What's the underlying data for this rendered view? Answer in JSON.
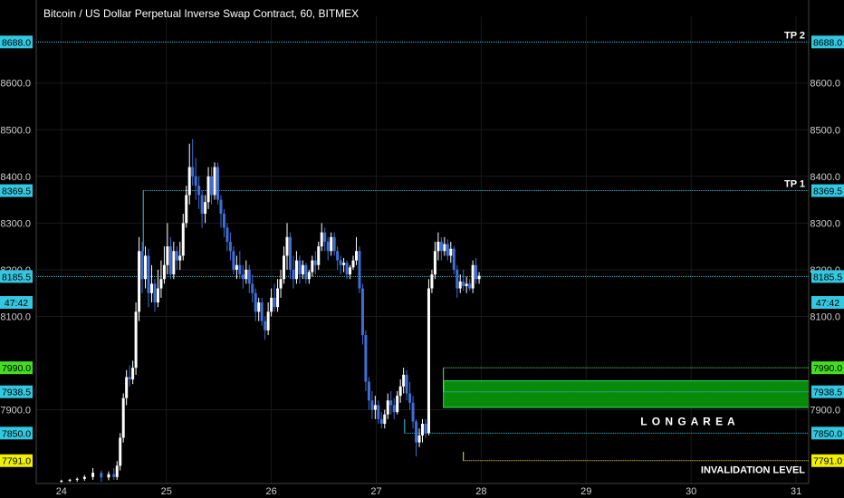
{
  "header": {
    "title": "Bitcoin / US Dollar Perpetual Inverse Swap Contract, 60, BITMEX"
  },
  "colors": {
    "background": "#000000",
    "up_candle": "#ffffff",
    "down_candle": "#3f6ed6",
    "level_line": "#33c7e0",
    "long_area_fill": "#0a8a0a",
    "long_area_border": "#29e05a",
    "long_area_top_line": "#7be36a",
    "invalidation_line": "#e6e65a",
    "axis_text": "#cfcfcf",
    "grid": "#1a1a1a"
  },
  "chart_data": {
    "type": "candlestick",
    "x_ticks": [
      "24",
      "25",
      "26",
      "27",
      "28",
      "29",
      "30",
      "31"
    ],
    "y_ticks": [
      "8600.0",
      "8500.0",
      "8400.0",
      "8300.0",
      "8200.0",
      "8100.0",
      "7900.0"
    ],
    "ylim": [
      7742,
      8743
    ],
    "xlim": [
      23.76,
      31.12
    ],
    "grid": true,
    "price_labels": [
      {
        "value": "8688.0",
        "price": 8688,
        "bg": "#33c7e0",
        "fg": "#000000"
      },
      {
        "value": "8369.5",
        "price": 8369.5,
        "bg": "#33c7e0",
        "fg": "#000000"
      },
      {
        "value": "8185.5",
        "price": 8185.5,
        "bg": "#33c7e0",
        "fg": "#000000"
      },
      {
        "value": "47:42",
        "price": 8130,
        "bg": "#33c7e0",
        "fg": "#000000"
      },
      {
        "value": "7990.0",
        "price": 7990,
        "bg": "#44dd22",
        "fg": "#000000"
      },
      {
        "value": "7938.5",
        "price": 7938.5,
        "bg": "#33c7e0",
        "fg": "#000000"
      },
      {
        "value": "7850.0",
        "price": 7850,
        "bg": "#33c7e0",
        "fg": "#000000"
      },
      {
        "value": "7791.0",
        "price": 7791,
        "bg": "#f0f000",
        "fg": "#000000"
      }
    ],
    "annotations": [
      {
        "text": "TP 2",
        "price": 8688
      },
      {
        "text": "TP 1",
        "price": 8369.5
      },
      {
        "text": "L O N G   A R E A",
        "price": 7875
      },
      {
        "text": "INVALIDATION LEVEL",
        "price": 7772
      }
    ],
    "levels": [
      {
        "name": "tp2",
        "price": 8688,
        "from": 23.76,
        "style": "dotted"
      },
      {
        "name": "tp1",
        "price": 8369.5,
        "from": 24.78,
        "style": "dotted"
      },
      {
        "name": "current",
        "price": 8185.5,
        "from": 23.76,
        "style": "dotted"
      },
      {
        "name": "entry-high",
        "price": 7990,
        "from": 27.64,
        "style": "dotted"
      },
      {
        "name": "entry-mid",
        "price": 7938.5,
        "from": 27.64,
        "style": "dotted"
      },
      {
        "name": "support",
        "price": 7850,
        "from": 27.27,
        "style": "dotted"
      },
      {
        "name": "invalidation",
        "price": 7791,
        "from": 27.83,
        "style": "dotted"
      }
    ],
    "long_area": {
      "x_from": 27.64,
      "price_top": 7962,
      "price_bottom": 7905
    },
    "candles": [
      [
        24.0,
        7746,
        7750,
        7744,
        7748
      ],
      [
        24.08,
        7748,
        7752,
        7745,
        7750
      ],
      [
        24.15,
        7750,
        7755,
        7746,
        7752
      ],
      [
        24.22,
        7752,
        7760,
        7748,
        7756
      ],
      [
        24.3,
        7756,
        7775,
        7750,
        7765
      ],
      [
        24.38,
        7765,
        7770,
        7745,
        7755
      ],
      [
        24.45,
        7755,
        7768,
        7749,
        7762
      ],
      [
        24.5,
        7762,
        7775,
        7750,
        7756
      ],
      [
        24.53,
        7756,
        7790,
        7750,
        7780
      ],
      [
        24.56,
        7780,
        7850,
        7770,
        7840
      ],
      [
        24.59,
        7840,
        7935,
        7830,
        7925
      ],
      [
        24.62,
        7925,
        7985,
        7910,
        7970
      ],
      [
        24.65,
        7970,
        7995,
        7950,
        7965
      ],
      [
        24.68,
        7965,
        8005,
        7955,
        7990
      ],
      [
        24.71,
        7990,
        8130,
        7975,
        8110
      ],
      [
        24.74,
        8110,
        8270,
        8090,
        8240
      ],
      [
        24.77,
        8240,
        8260,
        8150,
        8180
      ],
      [
        24.8,
        8180,
        8250,
        8160,
        8230
      ],
      [
        24.83,
        8230,
        8245,
        8120,
        8150
      ],
      [
        24.86,
        8150,
        8210,
        8130,
        8170
      ],
      [
        24.89,
        8170,
        8180,
        8110,
        8130
      ],
      [
        24.92,
        8130,
        8200,
        8120,
        8160
      ],
      [
        24.95,
        8160,
        8220,
        8140,
        8180
      ],
      [
        24.98,
        8180,
        8250,
        8170,
        8210
      ],
      [
        25.01,
        8210,
        8300,
        8190,
        8250
      ],
      [
        25.04,
        8250,
        8270,
        8180,
        8190
      ],
      [
        25.07,
        8190,
        8260,
        8180,
        8240
      ],
      [
        25.1,
        8240,
        8250,
        8200,
        8220
      ],
      [
        25.13,
        8220,
        8260,
        8200,
        8230
      ],
      [
        25.16,
        8230,
        8320,
        8220,
        8300
      ],
      [
        25.19,
        8300,
        8380,
        8290,
        8360
      ],
      [
        25.22,
        8360,
        8470,
        8340,
        8420
      ],
      [
        25.25,
        8420,
        8480,
        8380,
        8400
      ],
      [
        25.28,
        8400,
        8440,
        8350,
        8380
      ],
      [
        25.31,
        8380,
        8400,
        8330,
        8360
      ],
      [
        25.34,
        8360,
        8370,
        8290,
        8320
      ],
      [
        25.37,
        8320,
        8360,
        8300,
        8345
      ],
      [
        25.4,
        8345,
        8420,
        8330,
        8400
      ],
      [
        25.43,
        8400,
        8420,
        8340,
        8360
      ],
      [
        25.46,
        8360,
        8430,
        8350,
        8420
      ],
      [
        25.49,
        8420,
        8430,
        8340,
        8350
      ],
      [
        25.52,
        8350,
        8360,
        8290,
        8320
      ],
      [
        25.55,
        8320,
        8330,
        8270,
        8290
      ],
      [
        25.58,
        8290,
        8300,
        8240,
        8260
      ],
      [
        25.61,
        8260,
        8280,
        8220,
        8240
      ],
      [
        25.64,
        8240,
        8250,
        8190,
        8200
      ],
      [
        25.67,
        8200,
        8230,
        8180,
        8210
      ],
      [
        25.7,
        8210,
        8240,
        8180,
        8190
      ],
      [
        25.73,
        8190,
        8210,
        8160,
        8180
      ],
      [
        25.76,
        8180,
        8220,
        8170,
        8200
      ],
      [
        25.79,
        8200,
        8210,
        8150,
        8170
      ],
      [
        25.82,
        8170,
        8190,
        8130,
        8150
      ],
      [
        25.85,
        8150,
        8160,
        8090,
        8110
      ],
      [
        25.88,
        8110,
        8140,
        8090,
        8130
      ],
      [
        25.91,
        8130,
        8140,
        8080,
        8090
      ],
      [
        25.94,
        8090,
        8100,
        8050,
        8070
      ],
      [
        25.97,
        8070,
        8130,
        8060,
        8110
      ],
      [
        26.0,
        8110,
        8160,
        8100,
        8140
      ],
      [
        26.03,
        8140,
        8170,
        8110,
        8120
      ],
      [
        26.06,
        8120,
        8180,
        8110,
        8160
      ],
      [
        26.09,
        8160,
        8200,
        8140,
        8180
      ],
      [
        26.12,
        8180,
        8250,
        8170,
        8230
      ],
      [
        26.15,
        8230,
        8300,
        8200,
        8270
      ],
      [
        26.18,
        8270,
        8280,
        8180,
        8200
      ],
      [
        26.21,
        8200,
        8230,
        8160,
        8180
      ],
      [
        26.24,
        8180,
        8240,
        8170,
        8220
      ],
      [
        26.27,
        8220,
        8230,
        8170,
        8190
      ],
      [
        26.3,
        8190,
        8220,
        8180,
        8210
      ],
      [
        26.33,
        8210,
        8215,
        8170,
        8180
      ],
      [
        26.36,
        8180,
        8200,
        8170,
        8195
      ],
      [
        26.39,
        8195,
        8230,
        8185,
        8220
      ],
      [
        26.42,
        8220,
        8240,
        8190,
        8210
      ],
      [
        26.45,
        8210,
        8260,
        8200,
        8250
      ],
      [
        26.48,
        8250,
        8300,
        8240,
        8280
      ],
      [
        26.51,
        8280,
        8290,
        8240,
        8260
      ],
      [
        26.54,
        8260,
        8270,
        8220,
        8240
      ],
      [
        26.57,
        8240,
        8280,
        8230,
        8270
      ],
      [
        26.6,
        8270,
        8280,
        8230,
        8240
      ],
      [
        26.63,
        8240,
        8250,
        8200,
        8220
      ],
      [
        26.66,
        8220,
        8230,
        8190,
        8210
      ],
      [
        26.69,
        8210,
        8225,
        8195,
        8215
      ],
      [
        26.72,
        8215,
        8220,
        8180,
        8190
      ],
      [
        26.75,
        8190,
        8210,
        8180,
        8205
      ],
      [
        26.78,
        8205,
        8230,
        8200,
        8220
      ],
      [
        26.81,
        8220,
        8270,
        8210,
        8240
      ],
      [
        26.84,
        8240,
        8250,
        8150,
        8160
      ],
      [
        26.87,
        8160,
        8170,
        8040,
        8060
      ],
      [
        26.9,
        8060,
        8070,
        7940,
        7960
      ],
      [
        26.93,
        7960,
        7970,
        7900,
        7920
      ],
      [
        26.96,
        7920,
        7940,
        7880,
        7900
      ],
      [
        26.99,
        7900,
        7930,
        7880,
        7910
      ],
      [
        27.02,
        7910,
        7920,
        7870,
        7880
      ],
      [
        27.05,
        7880,
        7895,
        7860,
        7870
      ],
      [
        27.08,
        7870,
        7900,
        7860,
        7890
      ],
      [
        27.11,
        7890,
        7935,
        7880,
        7920
      ],
      [
        27.14,
        7920,
        7940,
        7890,
        7910
      ],
      [
        27.17,
        7910,
        7925,
        7880,
        7895
      ],
      [
        27.2,
        7895,
        7940,
        7890,
        7930
      ],
      [
        27.23,
        7930,
        7965,
        7915,
        7950
      ],
      [
        27.26,
        7950,
        7990,
        7935,
        7975
      ],
      [
        27.29,
        7975,
        7985,
        7920,
        7935
      ],
      [
        27.32,
        7935,
        7960,
        7900,
        7915
      ],
      [
        27.35,
        7915,
        7930,
        7860,
        7875
      ],
      [
        27.38,
        7875,
        7880,
        7800,
        7830
      ],
      [
        27.41,
        7830,
        7860,
        7820,
        7845
      ],
      [
        27.44,
        7845,
        7880,
        7830,
        7870
      ],
      [
        27.47,
        7870,
        7880,
        7840,
        7850
      ],
      [
        27.5,
        7850,
        8180,
        7845,
        8160
      ],
      [
        27.53,
        8160,
        8200,
        8150,
        8190
      ],
      [
        27.56,
        8190,
        8260,
        8180,
        8240
      ],
      [
        27.59,
        8240,
        8280,
        8220,
        8260
      ],
      [
        27.62,
        8260,
        8270,
        8220,
        8240
      ],
      [
        27.65,
        8240,
        8270,
        8230,
        8255
      ],
      [
        27.68,
        8255,
        8265,
        8220,
        8230
      ],
      [
        27.71,
        8230,
        8260,
        8215,
        8245
      ],
      [
        27.74,
        8245,
        8250,
        8190,
        8200
      ],
      [
        27.77,
        8200,
        8210,
        8140,
        8160
      ],
      [
        27.8,
        8160,
        8190,
        8150,
        8175
      ],
      [
        27.83,
        8175,
        8200,
        8155,
        8165
      ],
      [
        27.86,
        8165,
        8185,
        8150,
        8170
      ],
      [
        27.89,
        8170,
        8180,
        8155,
        8160
      ],
      [
        27.92,
        8160,
        8220,
        8150,
        8210
      ],
      [
        27.95,
        8210,
        8225,
        8170,
        8180
      ],
      [
        27.98,
        8180,
        8195,
        8170,
        8187
      ]
    ]
  }
}
